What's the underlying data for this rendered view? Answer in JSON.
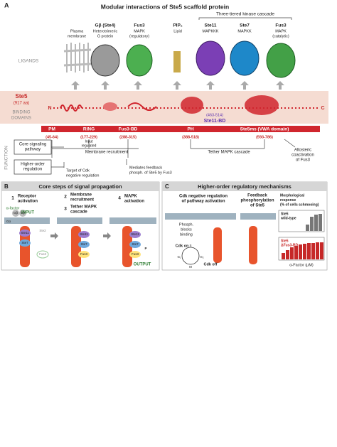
{
  "panel_a": {
    "letter": "A",
    "title": "Modular interactions of Ste5 scaffold protein",
    "cascade_label": "Three-tiered kinase cascade",
    "ligands_heading": "LIGANDS",
    "ligands": [
      {
        "description": [
          "Plasma",
          "membrane"
        ]
      },
      {
        "name": "Gβ (Ste4)",
        "description": [
          "Heterotrimeric",
          "G protein"
        ]
      },
      {
        "name": "Fus3",
        "description": [
          "MAPK",
          "(regulatory)"
        ]
      },
      {
        "name": "PIP₂",
        "description": [
          "Lipid"
        ]
      },
      {
        "name": "Ste11",
        "description": [
          "MAPKKK"
        ]
      },
      {
        "name": "Ste7",
        "description": [
          "MAPKK"
        ]
      },
      {
        "name": "Fus3",
        "description": [
          "MAPK",
          "(catalytic)"
        ]
      }
    ],
    "protein": {
      "name": "Ste5",
      "length": "(917 aa)",
      "n_terminus": "N",
      "c_terminus": "C"
    },
    "binding_heading": [
      "BINDING",
      "DOMAINS"
    ],
    "ste11_bd": {
      "range": "(463-514)",
      "name": "Ste11-BD"
    },
    "domains": [
      {
        "name": "PM",
        "range": "(45-64)"
      },
      {
        "name": "RING",
        "range": "(177-229)"
      },
      {
        "name": "Fus3-BD",
        "range": "(288-315)"
      },
      {
        "name": "PH",
        "range": "(388-518)"
      },
      {
        "name": "Ste5ms (VWA domain)",
        "range": "(593-786)"
      }
    ],
    "function_heading": "FUNCTION",
    "function_boxes": [
      [
        "Core signaling",
        "pathway"
      ],
      [
        "Higher-order",
        "regulation"
      ]
    ],
    "annotations": {
      "input_regulated": [
        "Input",
        "regulated"
      ],
      "membrane_recruitment": "Membrane recruitment",
      "tether": "Tether MAPK cascade",
      "allosteric": [
        "Allosteric",
        "coactivation",
        "of Fus3"
      ],
      "cdk_target": [
        "Target of Cdk",
        "negative regulation"
      ],
      "feedback": [
        "Mediates feedback",
        "phosph. of Ste5 by Fus3"
      ]
    }
  },
  "panel_b": {
    "letter": "B",
    "title": "Core steps of signal propagation",
    "steps": [
      {
        "number": "1",
        "label": [
          "Receptor",
          "activation"
        ]
      },
      {
        "number": "2",
        "label": [
          "Membrane",
          "recruitment"
        ]
      },
      {
        "number": "3",
        "label": [
          "Tether MAPK",
          "cascade"
        ]
      },
      {
        "number": "4",
        "label": [
          "MAPK",
          "activation"
        ]
      }
    ],
    "ligand": "α-factor",
    "input": "INPUT",
    "output": "OUTPUT",
    "proteins": {
      "gb": "Gβ",
      "gg": "Gγ",
      "ga": "Gα",
      "ste2": "Ste2",
      "ste11": "Ste11",
      "ste7": "Ste7",
      "fus3": "Fus3",
      "p": "P"
    }
  },
  "panel_c": {
    "letter": "C",
    "title": "Higher-order regulatory mechanisms",
    "cdk_heading": [
      "Cdk negative regulation",
      "of pathway activation"
    ],
    "feedback_heading": [
      "Feedback",
      "phosphorylation",
      "of Ste5"
    ],
    "response_heading": [
      "Morphological",
      "response",
      "(% of cells schmooing)"
    ],
    "phosph_blocks": [
      "Phosph.",
      "blocks",
      "binding"
    ],
    "cdk_on": "Cdk on",
    "cdk_off": "Cdk off",
    "cycle": {
      "g1": "G₁",
      "s": "S",
      "g2": "G₂",
      "m": "M"
    },
    "wild_type": [
      "Ste5",
      "wild-type"
    ],
    "mutant": [
      "Ste5",
      "ΔFus3-BD"
    ],
    "x_axis": "α-Factor (μM)"
  }
}
